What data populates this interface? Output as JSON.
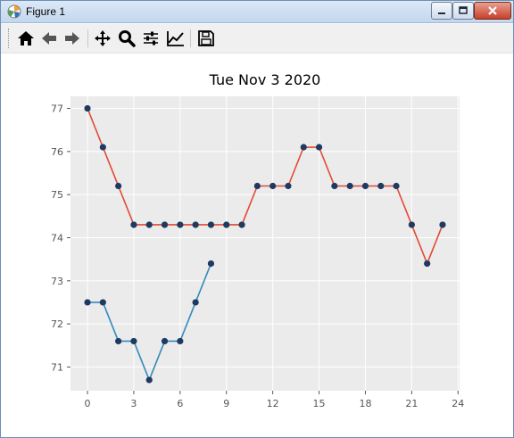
{
  "window": {
    "title": "Figure 1",
    "icons": {
      "app": "matplotlib-icon",
      "minimize": "minimize-icon",
      "maximize": "maximize-icon",
      "close": "close-icon"
    }
  },
  "toolbar": {
    "buttons": [
      {
        "name": "home-button",
        "icon": "home-icon"
      },
      {
        "name": "back-button",
        "icon": "arrow-left-icon"
      },
      {
        "name": "forward-button",
        "icon": "arrow-right-icon"
      },
      {
        "name": "pan-button",
        "icon": "move-icon"
      },
      {
        "name": "zoom-button",
        "icon": "magnifier-icon"
      },
      {
        "name": "subplots-button",
        "icon": "sliders-icon"
      },
      {
        "name": "axes-edit-button",
        "icon": "line-chart-icon"
      },
      {
        "name": "save-button",
        "icon": "floppy-disk-icon"
      }
    ]
  },
  "chart_data": {
    "type": "line",
    "title": "Tue Nov 3 2020",
    "xlabel": "",
    "ylabel": "",
    "xlim": [
      -1.1,
      24.1
    ],
    "ylim": [
      70.45,
      77.28
    ],
    "xticks": [
      0,
      3,
      6,
      9,
      12,
      15,
      18,
      21,
      24
    ],
    "yticks": [
      71,
      72,
      73,
      74,
      75,
      76,
      77
    ],
    "grid": true,
    "background": "#ebebeb",
    "marker_color": "#1f3a60",
    "series": [
      {
        "color": "#e24a33",
        "x": [
          0,
          1,
          2,
          3,
          4,
          5,
          6,
          7,
          8,
          9,
          10,
          11,
          12,
          13,
          14,
          15,
          16,
          17,
          18,
          19,
          20,
          21,
          22,
          23
        ],
        "y": [
          77.0,
          76.1,
          75.2,
          74.3,
          74.3,
          74.3,
          74.3,
          74.3,
          74.3,
          74.3,
          74.3,
          75.2,
          75.2,
          75.2,
          76.1,
          76.1,
          75.2,
          75.2,
          75.2,
          75.2,
          75.2,
          74.3,
          73.4,
          74.3
        ]
      },
      {
        "color": "#348abd",
        "x": [
          0,
          1,
          2,
          3,
          4,
          5,
          6,
          7,
          8
        ],
        "y": [
          72.5,
          72.5,
          71.6,
          71.6,
          70.7,
          71.6,
          71.6,
          72.5,
          73.4
        ]
      }
    ]
  }
}
